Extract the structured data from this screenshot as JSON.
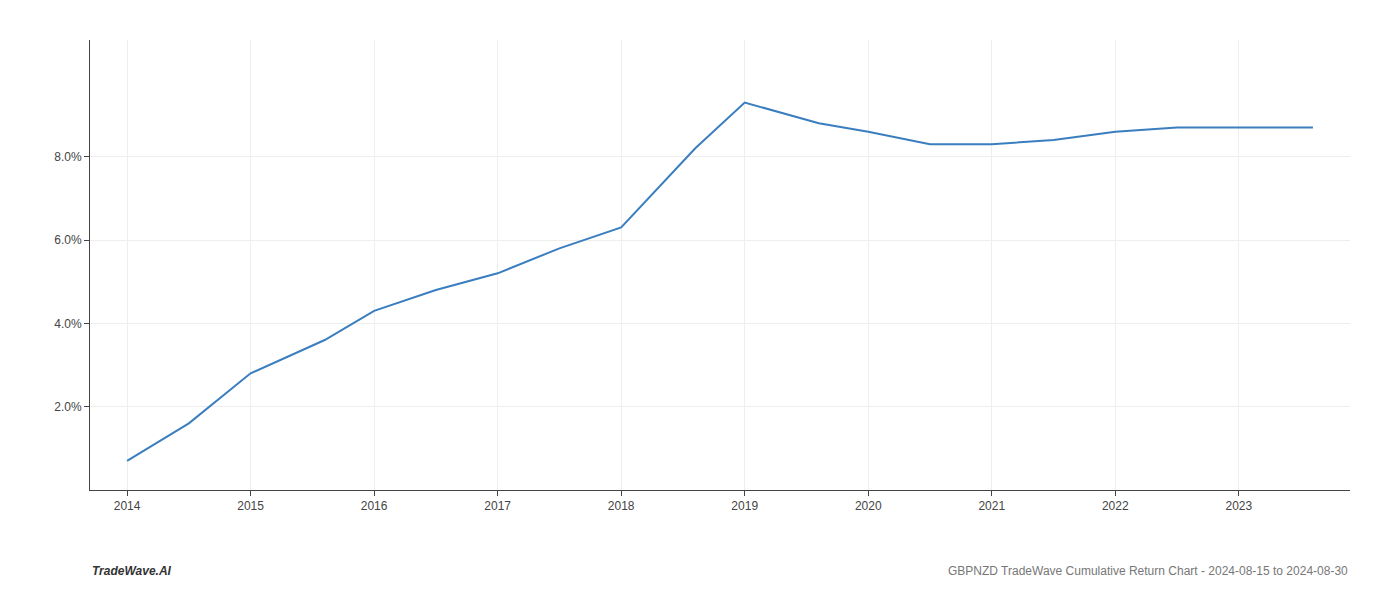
{
  "chart_data": {
    "type": "line",
    "x": [
      2014.0,
      2014.5,
      2015.0,
      2015.6,
      2016.0,
      2016.5,
      2017.0,
      2017.5,
      2018.0,
      2018.6,
      2019.0,
      2019.6,
      2020.0,
      2020.5,
      2021.0,
      2021.5,
      2022.0,
      2022.5,
      2023.0,
      2023.6
    ],
    "values": [
      0.007,
      0.016,
      0.028,
      0.036,
      0.043,
      0.048,
      0.052,
      0.058,
      0.063,
      0.082,
      0.093,
      0.088,
      0.086,
      0.083,
      0.083,
      0.084,
      0.086,
      0.087,
      0.087,
      0.087
    ],
    "color": "#3a7ebf",
    "xlim": [
      2013.7,
      2023.9
    ],
    "ylim": [
      0.0,
      0.108
    ],
    "xticks": [
      2014,
      2015,
      2016,
      2017,
      2018,
      2019,
      2020,
      2021,
      2022,
      2023
    ],
    "yticks": [
      {
        "value": 0.02,
        "label": "2.0%"
      },
      {
        "value": 0.04,
        "label": "4.0%"
      },
      {
        "value": 0.06,
        "label": "6.0%"
      },
      {
        "value": 0.08,
        "label": "8.0%"
      }
    ],
    "grid": true,
    "annotations": [
      "TradeWave.AI",
      "GBPNZD TradeWave Cumulative Return Chart - 2024-08-15 to 2024-08-30"
    ]
  }
}
